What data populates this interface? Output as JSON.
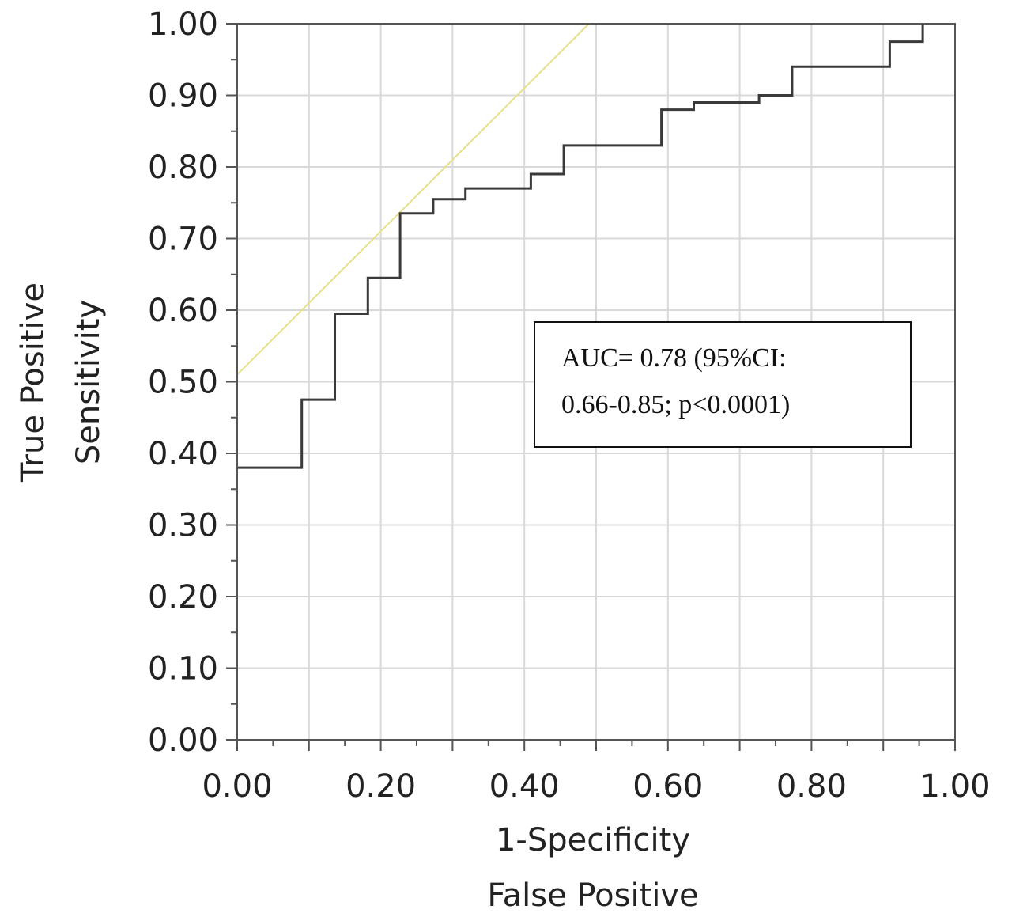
{
  "chart_data": {
    "type": "line",
    "xlabel": [
      "1-Specificity",
      "False Positive"
    ],
    "ylabel": [
      "True Positive",
      "Sensitivity"
    ],
    "xlim": [
      0,
      1
    ],
    "ylim": [
      0,
      1
    ],
    "xticks": [
      "0.00",
      "0.20",
      "0.40",
      "0.60",
      "0.80",
      "1.00"
    ],
    "yticks": [
      "0.00",
      "0.10",
      "0.20",
      "0.30",
      "0.40",
      "0.50",
      "0.60",
      "0.70",
      "0.80",
      "0.90",
      "1.00"
    ],
    "grid": true,
    "annotation": [
      "AUC= 0.78 (95%CI:",
      "0.66-0.85; p<0.0001)"
    ],
    "series": [
      {
        "color": "#3a3a3a",
        "style": "step",
        "x": [
          0.0,
          0.09,
          0.09,
          0.136,
          0.136,
          0.182,
          0.182,
          0.227,
          0.227,
          0.273,
          0.273,
          0.318,
          0.318,
          0.409,
          0.409,
          0.455,
          0.455,
          0.591,
          0.591,
          0.636,
          0.636,
          0.727,
          0.727,
          0.773,
          0.773,
          0.909,
          0.909,
          0.955,
          0.955
        ],
        "y": [
          0.38,
          0.38,
          0.475,
          0.475,
          0.595,
          0.595,
          0.645,
          0.645,
          0.735,
          0.735,
          0.755,
          0.755,
          0.77,
          0.77,
          0.79,
          0.79,
          0.83,
          0.83,
          0.88,
          0.88,
          0.89,
          0.89,
          0.9,
          0.9,
          0.94,
          0.94,
          0.975,
          0.975,
          1.0
        ]
      },
      {
        "color": "#e8e08a",
        "style": "line",
        "x": [
          0.0,
          0.49
        ],
        "y": [
          0.51,
          1.0
        ]
      }
    ]
  }
}
